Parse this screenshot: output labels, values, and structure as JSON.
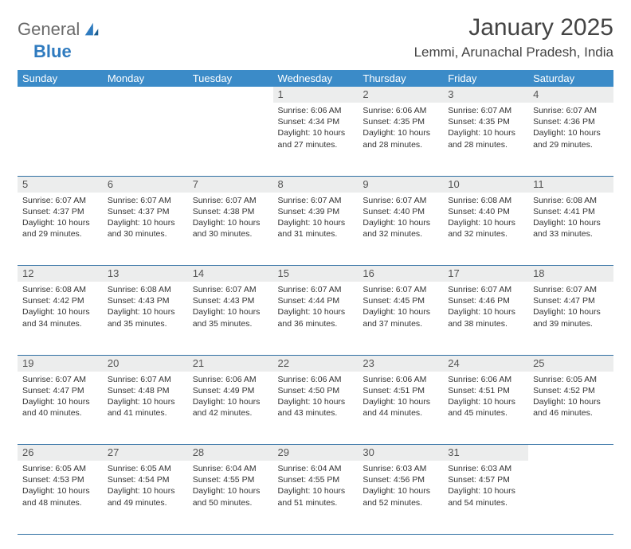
{
  "brand": {
    "part1": "General",
    "part2": "Blue"
  },
  "title": "January 2025",
  "location": "Lemmi, Arunachal Pradesh, India",
  "colors": {
    "header_bg": "#3b8bc8",
    "header_text": "#ffffff",
    "daynum_bg": "#eceded",
    "rule": "#2f6fa3",
    "brand_gray": "#6a6a6a",
    "brand_blue": "#2f7bbf",
    "text": "#333333",
    "background": "#ffffff"
  },
  "typography": {
    "title_fontsize": 30,
    "location_fontsize": 17,
    "weekday_fontsize": 13,
    "daynum_fontsize": 13,
    "body_fontsize": 10.5,
    "font_family": "Arial"
  },
  "weekdays": [
    "Sunday",
    "Monday",
    "Tuesday",
    "Wednesday",
    "Thursday",
    "Friday",
    "Saturday"
  ],
  "weeks": [
    [
      null,
      null,
      null,
      {
        "n": "1",
        "sunrise": "6:06 AM",
        "sunset": "4:34 PM",
        "dl1": "Daylight: 10 hours",
        "dl2": "and 27 minutes."
      },
      {
        "n": "2",
        "sunrise": "6:06 AM",
        "sunset": "4:35 PM",
        "dl1": "Daylight: 10 hours",
        "dl2": "and 28 minutes."
      },
      {
        "n": "3",
        "sunrise": "6:07 AM",
        "sunset": "4:35 PM",
        "dl1": "Daylight: 10 hours",
        "dl2": "and 28 minutes."
      },
      {
        "n": "4",
        "sunrise": "6:07 AM",
        "sunset": "4:36 PM",
        "dl1": "Daylight: 10 hours",
        "dl2": "and 29 minutes."
      }
    ],
    [
      {
        "n": "5",
        "sunrise": "6:07 AM",
        "sunset": "4:37 PM",
        "dl1": "Daylight: 10 hours",
        "dl2": "and 29 minutes."
      },
      {
        "n": "6",
        "sunrise": "6:07 AM",
        "sunset": "4:37 PM",
        "dl1": "Daylight: 10 hours",
        "dl2": "and 30 minutes."
      },
      {
        "n": "7",
        "sunrise": "6:07 AM",
        "sunset": "4:38 PM",
        "dl1": "Daylight: 10 hours",
        "dl2": "and 30 minutes."
      },
      {
        "n": "8",
        "sunrise": "6:07 AM",
        "sunset": "4:39 PM",
        "dl1": "Daylight: 10 hours",
        "dl2": "and 31 minutes."
      },
      {
        "n": "9",
        "sunrise": "6:07 AM",
        "sunset": "4:40 PM",
        "dl1": "Daylight: 10 hours",
        "dl2": "and 32 minutes."
      },
      {
        "n": "10",
        "sunrise": "6:08 AM",
        "sunset": "4:40 PM",
        "dl1": "Daylight: 10 hours",
        "dl2": "and 32 minutes."
      },
      {
        "n": "11",
        "sunrise": "6:08 AM",
        "sunset": "4:41 PM",
        "dl1": "Daylight: 10 hours",
        "dl2": "and 33 minutes."
      }
    ],
    [
      {
        "n": "12",
        "sunrise": "6:08 AM",
        "sunset": "4:42 PM",
        "dl1": "Daylight: 10 hours",
        "dl2": "and 34 minutes."
      },
      {
        "n": "13",
        "sunrise": "6:08 AM",
        "sunset": "4:43 PM",
        "dl1": "Daylight: 10 hours",
        "dl2": "and 35 minutes."
      },
      {
        "n": "14",
        "sunrise": "6:07 AM",
        "sunset": "4:43 PM",
        "dl1": "Daylight: 10 hours",
        "dl2": "and 35 minutes."
      },
      {
        "n": "15",
        "sunrise": "6:07 AM",
        "sunset": "4:44 PM",
        "dl1": "Daylight: 10 hours",
        "dl2": "and 36 minutes."
      },
      {
        "n": "16",
        "sunrise": "6:07 AM",
        "sunset": "4:45 PM",
        "dl1": "Daylight: 10 hours",
        "dl2": "and 37 minutes."
      },
      {
        "n": "17",
        "sunrise": "6:07 AM",
        "sunset": "4:46 PM",
        "dl1": "Daylight: 10 hours",
        "dl2": "and 38 minutes."
      },
      {
        "n": "18",
        "sunrise": "6:07 AM",
        "sunset": "4:47 PM",
        "dl1": "Daylight: 10 hours",
        "dl2": "and 39 minutes."
      }
    ],
    [
      {
        "n": "19",
        "sunrise": "6:07 AM",
        "sunset": "4:47 PM",
        "dl1": "Daylight: 10 hours",
        "dl2": "and 40 minutes."
      },
      {
        "n": "20",
        "sunrise": "6:07 AM",
        "sunset": "4:48 PM",
        "dl1": "Daylight: 10 hours",
        "dl2": "and 41 minutes."
      },
      {
        "n": "21",
        "sunrise": "6:06 AM",
        "sunset": "4:49 PM",
        "dl1": "Daylight: 10 hours",
        "dl2": "and 42 minutes."
      },
      {
        "n": "22",
        "sunrise": "6:06 AM",
        "sunset": "4:50 PM",
        "dl1": "Daylight: 10 hours",
        "dl2": "and 43 minutes."
      },
      {
        "n": "23",
        "sunrise": "6:06 AM",
        "sunset": "4:51 PM",
        "dl1": "Daylight: 10 hours",
        "dl2": "and 44 minutes."
      },
      {
        "n": "24",
        "sunrise": "6:06 AM",
        "sunset": "4:51 PM",
        "dl1": "Daylight: 10 hours",
        "dl2": "and 45 minutes."
      },
      {
        "n": "25",
        "sunrise": "6:05 AM",
        "sunset": "4:52 PM",
        "dl1": "Daylight: 10 hours",
        "dl2": "and 46 minutes."
      }
    ],
    [
      {
        "n": "26",
        "sunrise": "6:05 AM",
        "sunset": "4:53 PM",
        "dl1": "Daylight: 10 hours",
        "dl2": "and 48 minutes."
      },
      {
        "n": "27",
        "sunrise": "6:05 AM",
        "sunset": "4:54 PM",
        "dl1": "Daylight: 10 hours",
        "dl2": "and 49 minutes."
      },
      {
        "n": "28",
        "sunrise": "6:04 AM",
        "sunset": "4:55 PM",
        "dl1": "Daylight: 10 hours",
        "dl2": "and 50 minutes."
      },
      {
        "n": "29",
        "sunrise": "6:04 AM",
        "sunset": "4:55 PM",
        "dl1": "Daylight: 10 hours",
        "dl2": "and 51 minutes."
      },
      {
        "n": "30",
        "sunrise": "6:03 AM",
        "sunset": "4:56 PM",
        "dl1": "Daylight: 10 hours",
        "dl2": "and 52 minutes."
      },
      {
        "n": "31",
        "sunrise": "6:03 AM",
        "sunset": "4:57 PM",
        "dl1": "Daylight: 10 hours",
        "dl2": "and 54 minutes."
      },
      null
    ]
  ],
  "labels": {
    "sunrise_prefix": "Sunrise: ",
    "sunset_prefix": "Sunset: "
  }
}
